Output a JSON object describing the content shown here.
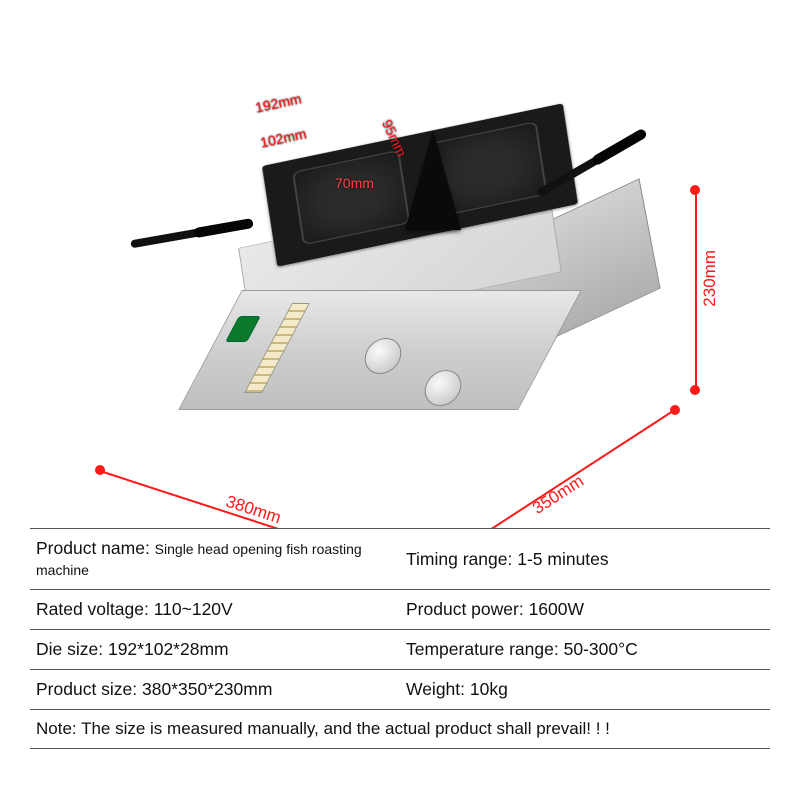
{
  "dimensions": {
    "width_label": "380mm",
    "depth_label": "350mm",
    "height_label": "230mm",
    "mold_length_label": "192mm",
    "mold_width_label": "102mm",
    "cone_height_label": "95mm",
    "cone_width_label": "70mm",
    "line_color": "#ff1a1a"
  },
  "specs": {
    "rows": [
      {
        "left_label": "Product name:",
        "left_value": "Single head opening fish roasting machine",
        "left_small": true,
        "right_label": "Timing range:",
        "right_value": "1-5 minutes"
      },
      {
        "left_label": "Rated voltage:",
        "left_value": "110~120V",
        "right_label": "Product power:",
        "right_value": "1600W"
      },
      {
        "left_label": "Die size:",
        "left_value": "192*102*28mm",
        "right_label": "Temperature range:",
        "right_value": "50-300°C"
      },
      {
        "left_label": "Product size:",
        "left_value": "380*350*230mm",
        "right_label": "Weight:",
        "right_value": "10kg"
      }
    ],
    "note_label": "Note:",
    "note_text": "The size is measured manually, and the actual product shall prevail! ! !"
  },
  "styling": {
    "background_color": "#ffffff",
    "text_color": "#111111",
    "border_color": "#555555",
    "accent_red": "#ff1a1a",
    "switch_green": "#0a7a2a",
    "body_font_size_pt": 13,
    "small_font_size_pt": 10.5
  }
}
